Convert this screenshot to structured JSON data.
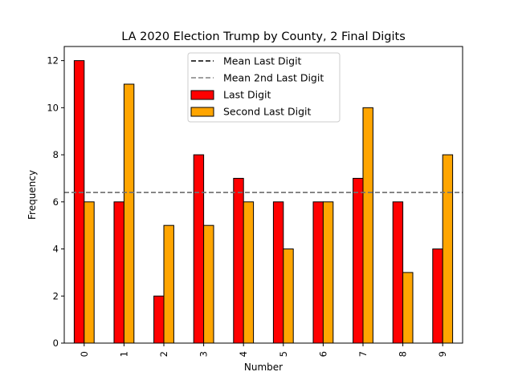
{
  "chart_data": {
    "type": "bar",
    "title": "LA 2020 Election Trump by County, 2 Final Digits",
    "xlabel": "Number",
    "ylabel": "Frequency",
    "categories": [
      "0",
      "1",
      "2",
      "3",
      "4",
      "5",
      "6",
      "7",
      "8",
      "9"
    ],
    "ylim": [
      0,
      12.6
    ],
    "yticks": [
      0,
      2,
      4,
      6,
      8,
      10,
      12
    ],
    "grid": false,
    "legend_position": "top-center",
    "series": [
      {
        "name": "Last Digit",
        "color": "#ff0000",
        "values": [
          12,
          6,
          2,
          8,
          7,
          6,
          6,
          7,
          6,
          4
        ]
      },
      {
        "name": "Second Last Digit",
        "color": "#ffa500",
        "values": [
          6,
          11,
          5,
          5,
          6,
          4,
          6,
          10,
          3,
          8
        ]
      }
    ],
    "reference_lines": [
      {
        "name": "Mean Last Digit",
        "value": 6.4,
        "color": "#000000",
        "style": "dashed"
      },
      {
        "name": "Mean 2nd Last Digit",
        "value": 6.4,
        "color": "#808080",
        "style": "dashed"
      }
    ],
    "legend_order": [
      "Mean Last Digit",
      "Mean 2nd Last Digit",
      "Last Digit",
      "Second Last Digit"
    ]
  }
}
